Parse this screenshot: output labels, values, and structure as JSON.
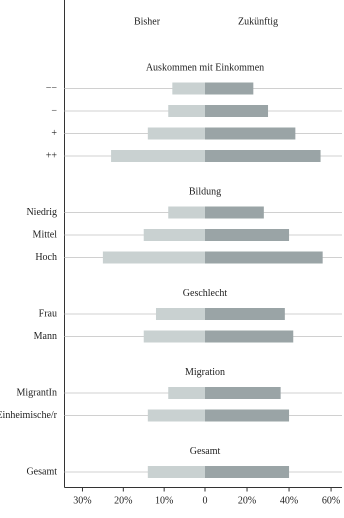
{
  "chart_data": {
    "type": "butterfly",
    "series": [
      {
        "name": "Bisher",
        "color": "#c9d1d1"
      },
      {
        "name": "Zukünftig",
        "color": "#9aa4a6"
      }
    ],
    "groups": [
      {
        "title": "Auskommen mit Einkommen",
        "categories": [
          "−−",
          "−",
          "+",
          "++"
        ],
        "values": [
          [
            8,
            9,
            14,
            23
          ],
          [
            23,
            30,
            43,
            55
          ]
        ]
      },
      {
        "title": "Bildung",
        "categories": [
          "Niedrig",
          "Mittel",
          "Hoch"
        ],
        "values": [
          [
            9,
            15,
            25
          ],
          [
            28,
            40,
            56
          ]
        ]
      },
      {
        "title": "Geschlecht",
        "categories": [
          "Frau",
          "Mann"
        ],
        "values": [
          [
            12,
            15
          ],
          [
            38,
            42
          ]
        ]
      },
      {
        "title": "Migration",
        "categories": [
          "MigrantIn",
          "Einheimische/r"
        ],
        "values": [
          [
            9,
            14
          ],
          [
            36,
            40
          ]
        ]
      },
      {
        "title": "Gesamt",
        "categories": [
          "Gesamt"
        ],
        "values": [
          [
            14
          ],
          [
            40
          ]
        ]
      }
    ],
    "xlim": [
      0,
      34.4
    ],
    "xticks": [
      {
        "value": 30,
        "label": "30%"
      },
      {
        "value": 20,
        "label": "20%"
      },
      {
        "value": 10,
        "label": "10%"
      },
      0
    ],
    "x2lim": [
      0,
      65.2
    ],
    "x2ticks": [
      {
        "value": 20,
        "label": "20%"
      },
      {
        "value": 40,
        "label": "40%"
      },
      {
        "value": 60,
        "label": "60%"
      }
    ],
    "grid": true
  }
}
